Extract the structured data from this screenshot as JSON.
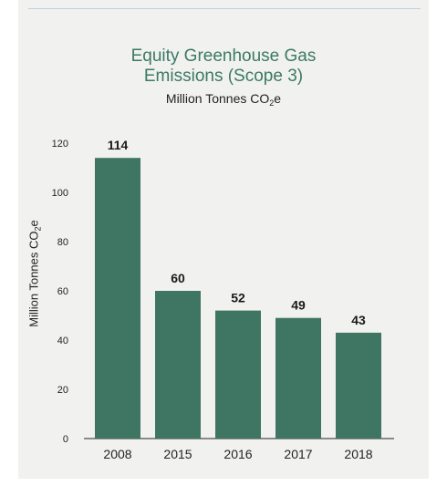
{
  "colors": {
    "bar": "#3f7663",
    "title": "#3b7a65",
    "background": "#f1f1f0",
    "rule": "#b9d3e0"
  },
  "chart_data": {
    "type": "bar",
    "title_line1": "Equity Greenhouse Gas",
    "title_line2": "Emissions (Scope 3)",
    "subtitle_main": "Million Tonnes CO",
    "subtitle_sub": "2",
    "subtitle_tail": "e",
    "ylabel_main": "Million Tonnes CO",
    "ylabel_sub": "2",
    "ylabel_tail": "e",
    "categories": [
      "2008",
      "2015",
      "2016",
      "2017",
      "2018"
    ],
    "values": [
      114,
      60,
      52,
      49,
      43
    ],
    "data_labels": [
      "114",
      "60",
      "52",
      "49",
      "43"
    ],
    "yticks": [
      0,
      20,
      40,
      60,
      80,
      100,
      120
    ],
    "ylim": [
      0,
      120
    ]
  }
}
